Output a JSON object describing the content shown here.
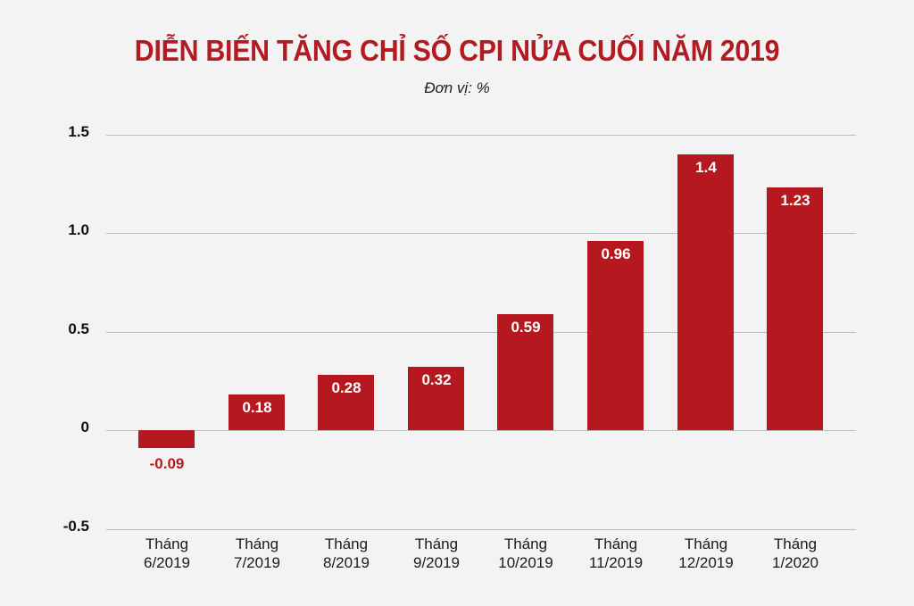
{
  "title": "DIỄN BIẾN TĂNG CHỈ SỐ CPI NỬA CUỐI NĂM 2019",
  "subtitle": "Đơn vị: %",
  "colors": {
    "background": "#F3F3F3",
    "title": "#B31B22",
    "bar": "#B5191F",
    "bar_label_positive": "#FFFFFF",
    "bar_label_negative": "#B31B22",
    "gridline": "#BDBDBD"
  },
  "chart_data": {
    "type": "bar",
    "title": "DIỄN BIẾN TĂNG CHỈ SỐ CPI NỬA CUỐI NĂM 2019",
    "subtitle": "Đơn vị: %",
    "xlabel": "",
    "ylabel": "",
    "ylim": [
      -0.5,
      1.5
    ],
    "yticks": [
      1.5,
      1.0,
      0.5,
      0,
      -0.5
    ],
    "ytick_labels": [
      "1.5",
      "1.0",
      "0.5",
      "0",
      "-0.5"
    ],
    "grid": true,
    "legend": null,
    "categories": [
      [
        "Tháng",
        "6/2019"
      ],
      [
        "Tháng",
        "7/2019"
      ],
      [
        "Tháng",
        "8/2019"
      ],
      [
        "Tháng",
        "9/2019"
      ],
      [
        "Tháng",
        "10/2019"
      ],
      [
        "Tháng",
        "11/2019"
      ],
      [
        "Tháng",
        "12/2019"
      ],
      [
        "Tháng",
        "1/2020"
      ]
    ],
    "values": [
      -0.09,
      0.18,
      0.28,
      0.32,
      0.59,
      0.96,
      1.4,
      1.23
    ],
    "value_labels": [
      "-0.09",
      "0.18",
      "0.28",
      "0.32",
      "0.59",
      "0.96",
      "1.4",
      "1.23"
    ]
  }
}
